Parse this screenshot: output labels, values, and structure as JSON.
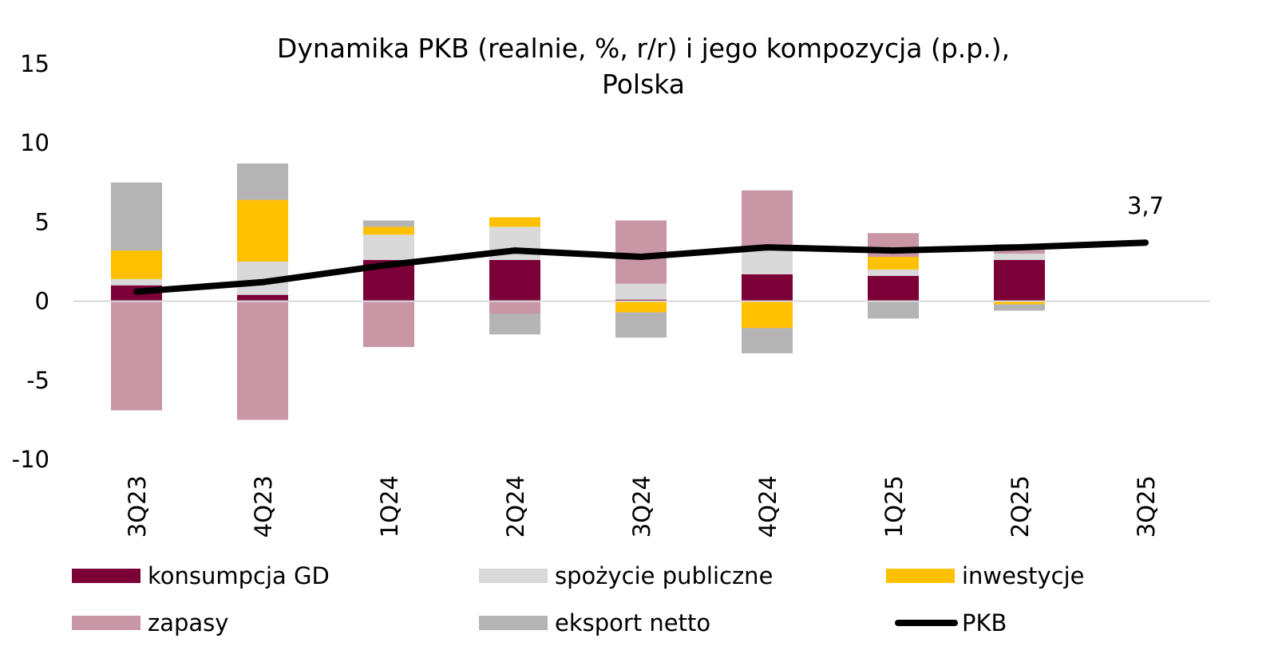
{
  "chart_data": {
    "type": "bar",
    "stacked": true,
    "title": "Dynamika PKB (realnie, %, r/r) i jego kompozycja (p.p.), Polska",
    "title_lines": [
      "Dynamika PKB (realnie, %, r/r) i jego kompozycja (p.p.),",
      "Polska"
    ],
    "categories": [
      "3Q23",
      "4Q23",
      "1Q24",
      "2Q24",
      "3Q24",
      "4Q24",
      "1Q25",
      "2Q25",
      "3Q25"
    ],
    "ylim": [
      -10,
      15
    ],
    "yticks": [
      -10,
      -5,
      0,
      5,
      10,
      15
    ],
    "ytick_labels": [
      "-10",
      "-5",
      "0",
      "5",
      "10",
      "15"
    ],
    "grid": false,
    "legend_position": "bottom",
    "series": [
      {
        "name": "konsumpcja GD",
        "kind": "bar",
        "color": "#7b0038",
        "values": [
          1.0,
          0.4,
          2.6,
          2.6,
          0.1,
          1.7,
          1.6,
          2.6,
          null
        ]
      },
      {
        "name": "spożycie publiczne",
        "kind": "bar",
        "color": "#d9d9d9",
        "values": [
          0.4,
          2.1,
          1.6,
          2.1,
          1.0,
          1.6,
          0.4,
          0.4,
          null
        ]
      },
      {
        "name": "inwestycje",
        "kind": "bar",
        "color": "#ffc000",
        "values": [
          1.8,
          3.9,
          0.5,
          0.6,
          -0.7,
          -1.7,
          0.8,
          -0.2,
          null
        ]
      },
      {
        "name": "zapasy",
        "kind": "bar",
        "color": "#c896a5",
        "values": [
          -6.9,
          -7.5,
          -2.9,
          -0.8,
          4.0,
          3.7,
          1.5,
          0.6,
          null
        ]
      },
      {
        "name": "eksport netto",
        "kind": "bar",
        "color": "#b4b4b4",
        "values": [
          4.3,
          2.3,
          0.4,
          -1.3,
          -1.6,
          -1.6,
          -1.1,
          -0.4,
          null
        ]
      },
      {
        "name": "PKB",
        "kind": "line",
        "color": "#000000",
        "values": [
          0.6,
          1.2,
          2.3,
          3.2,
          2.8,
          3.4,
          3.2,
          3.4,
          3.7
        ]
      }
    ],
    "annotations": [
      {
        "category": "3Q25",
        "text": "3,7"
      }
    ]
  }
}
